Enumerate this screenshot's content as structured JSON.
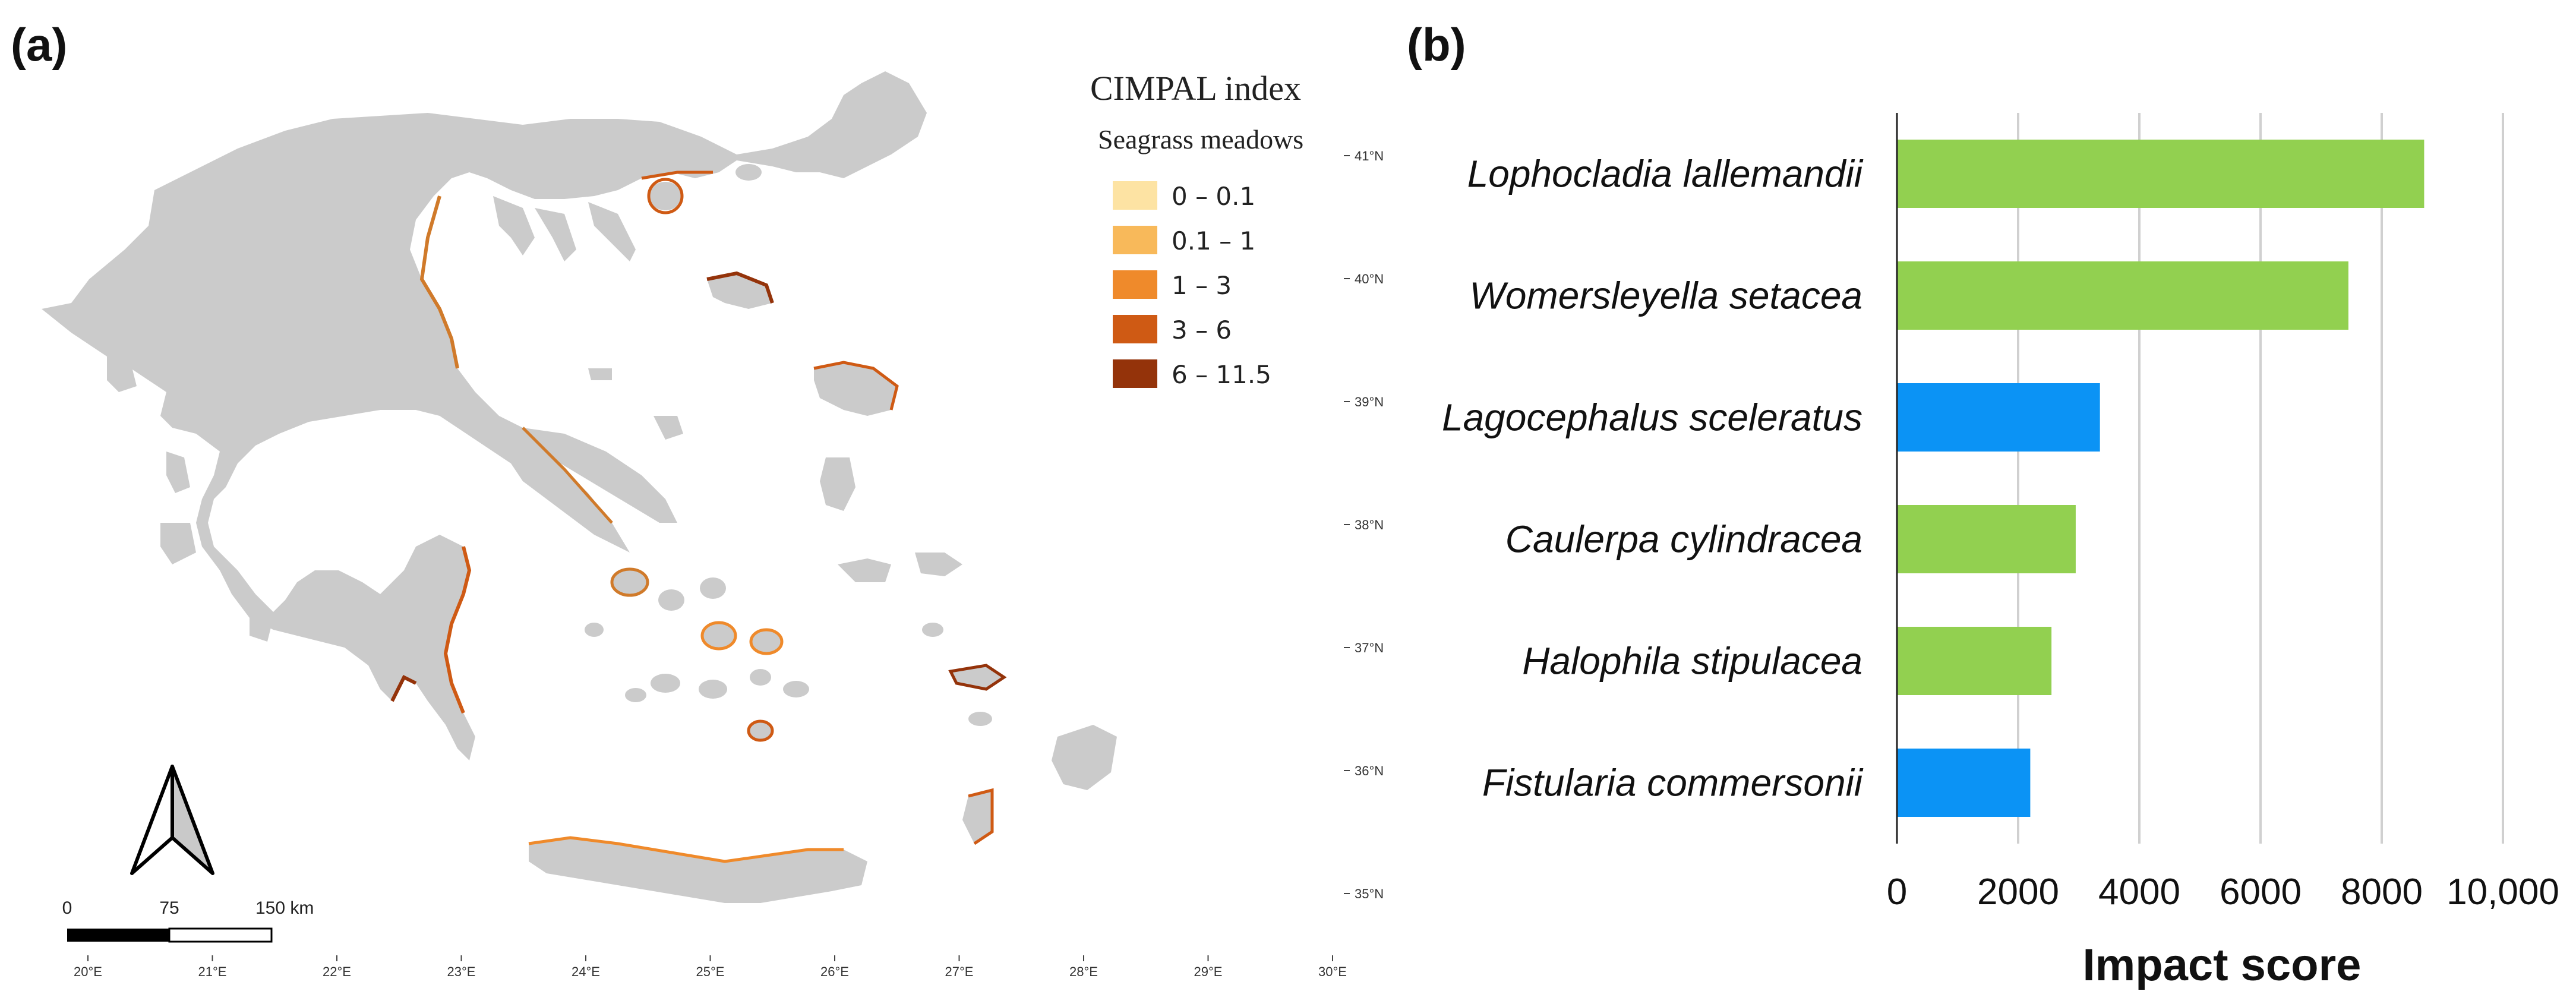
{
  "panel_a": {
    "label": "(a)",
    "legend": {
      "title": "CIMPAL index",
      "subtitle": "Seagrass meadows",
      "entries": [
        {
          "label": "0 – 0.1",
          "color": "#fde3a3"
        },
        {
          "label": "0.1 – 1",
          "color": "#f8b95a"
        },
        {
          "label": "1 – 3",
          "color": "#ef8a2b"
        },
        {
          "label": "3 – 6",
          "color": "#cf5a14"
        },
        {
          "label": "6 – 11.5",
          "color": "#94330a"
        }
      ]
    },
    "lat_labels": [
      "41°N",
      "40°N",
      "39°N",
      "38°N",
      "37°N",
      "36°N",
      "35°N"
    ],
    "lon_labels": [
      "20°E",
      "21°E",
      "22°E",
      "23°E",
      "24°E",
      "25°E",
      "26°E",
      "27°E",
      "28°E",
      "29°E",
      "30°E"
    ],
    "scale_bar": {
      "labels": [
        "0",
        "75",
        "150 km"
      ]
    },
    "colors": {
      "land": "#cbcbcb",
      "coast": "#d07a2a"
    }
  },
  "panel_b": {
    "label": "(b)"
  },
  "chart_data": {
    "type": "bar",
    "orientation": "horizontal",
    "categories": [
      "Lophocladia lallemandii",
      "Womersleyella setacea",
      "Lagocephalus sceleratus",
      "Caulerpa cylindracea",
      "Halophila stipulacea",
      "Fistularia commersonii"
    ],
    "values": [
      8700,
      7450,
      3350,
      2950,
      2550,
      2200
    ],
    "bar_colors": [
      "#92d050",
      "#92d050",
      "#0b93f5",
      "#92d050",
      "#92d050",
      "#0b93f5"
    ],
    "xlabel": "Impact score",
    "xlim": [
      0,
      10000
    ],
    "xticks": [
      0,
      2000,
      4000,
      6000,
      8000,
      10000
    ],
    "xtick_labels": [
      "0",
      "2000",
      "4000",
      "6000",
      "8000",
      "10,000"
    ],
    "grid": "vertical"
  }
}
